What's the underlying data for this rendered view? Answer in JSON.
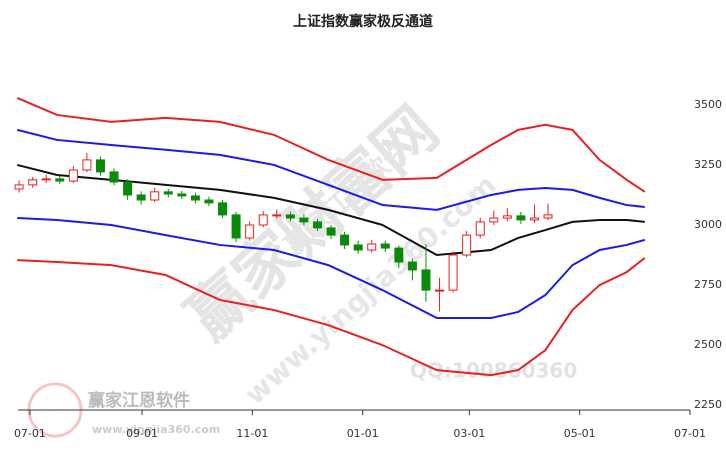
{
  "chart_data": {
    "type": "candlestick-bands",
    "title": "上证指数赢家极反通道",
    "watermarks": [
      "赢家财富网",
      "赢家江恩软件",
      "www.yingjia360.com",
      "QQ:100860360",
      "赢家江恩软件",
      "www.yingjia360.com"
    ],
    "xlim": [
      -6.6,
      365
    ],
    "ylim": [
      2230,
      3770
    ],
    "xticks": [
      {
        "value": 0,
        "label": "07-01"
      },
      {
        "value": 62,
        "label": "09-01"
      },
      {
        "value": 123,
        "label": "11-01"
      },
      {
        "value": 184,
        "label": "01-01"
      },
      {
        "value": 243,
        "label": "03-01"
      },
      {
        "value": 304,
        "label": "05-01"
      },
      {
        "value": 365,
        "label": "07-01"
      }
    ],
    "yticks": [
      2250,
      2500,
      2750,
      3000,
      3250,
      3500
    ],
    "x": [
      -7,
      15,
      45,
      75,
      105,
      135,
      165,
      195,
      225,
      255,
      270,
      285,
      300,
      315,
      330,
      340
    ],
    "series": [
      {
        "color": "#e8211e",
        "values": [
          3529,
          3458,
          3429,
          3446,
          3429,
          3375,
          3271,
          3188,
          3196,
          3333,
          3396,
          3417,
          3396,
          3271,
          3188,
          3138
        ]
      },
      {
        "color": "#1a1aeb",
        "values": [
          3396,
          3354,
          3333,
          3313,
          3292,
          3250,
          3167,
          3083,
          3063,
          3125,
          3146,
          3154,
          3146,
          3113,
          3083,
          3075
        ]
      },
      {
        "color": "#111111",
        "values": [
          3250,
          3208,
          3188,
          3167,
          3146,
          3113,
          3063,
          3000,
          2875,
          2896,
          2946,
          2979,
          3013,
          3021,
          3021,
          3013
        ]
      },
      {
        "color": "#1a1aeb",
        "values": [
          3029,
          3021,
          3000,
          2958,
          2917,
          2896,
          2833,
          2729,
          2613,
          2613,
          2638,
          2708,
          2833,
          2896,
          2917,
          2938
        ]
      },
      {
        "color": "#e8211e",
        "values": [
          2854,
          2846,
          2833,
          2792,
          2688,
          2646,
          2583,
          2500,
          2396,
          2375,
          2396,
          2479,
          2646,
          2750,
          2804,
          2863
        ]
      }
    ],
    "candles": {
      "up_color": "#e8211e",
      "down_color": "#0a8a0a",
      "x": [
        -6,
        1.5,
        9,
        16.5,
        24,
        31.5,
        39,
        46.5,
        54,
        61.5,
        69,
        76.5,
        84,
        91.5,
        99,
        106.5,
        114,
        121.5,
        129,
        136.5,
        144,
        151.5,
        159,
        166.5,
        174,
        181.5,
        189,
        196.5,
        204,
        211.5,
        219,
        226.5,
        234,
        241.5,
        249,
        256.5,
        264,
        271.5,
        279,
        286.5
      ],
      "open": [
        3150,
        3167,
        3188,
        3192,
        3183,
        3229,
        3271,
        3221,
        3179,
        3125,
        3104,
        3138,
        3129,
        3121,
        3104,
        3092,
        3042,
        2946,
        3000,
        3042,
        3042,
        3029,
        3013,
        2988,
        2958,
        2917,
        2896,
        2921,
        2904,
        2846,
        2813,
        2729,
        2729,
        2875,
        2958,
        3013,
        3029,
        3038,
        3021,
        3029
      ],
      "high": [
        3185,
        3200,
        3210,
        3205,
        3245,
        3300,
        3285,
        3235,
        3190,
        3140,
        3155,
        3150,
        3142,
        3135,
        3118,
        3105,
        3055,
        3015,
        3058,
        3065,
        3055,
        3045,
        3025,
        3000,
        2972,
        2935,
        2938,
        2935,
        2915,
        2860,
        2920,
        2780,
        2890,
        2975,
        3030,
        3060,
        3070,
        3055,
        3085,
        3090
      ],
      "low": [
        3135,
        3155,
        3175,
        3170,
        3175,
        3220,
        3205,
        3165,
        3105,
        3085,
        3095,
        3115,
        3108,
        3090,
        3078,
        3030,
        2930,
        2935,
        2990,
        3028,
        3015,
        3000,
        2975,
        2942,
        2900,
        2880,
        2885,
        2888,
        2820,
        2770,
        2680,
        2640,
        2720,
        2865,
        2945,
        3000,
        3015,
        3005,
        3008,
        3020
      ],
      "close": [
        3167,
        3188,
        3192,
        3183,
        3229,
        3271,
        3221,
        3179,
        3125,
        3104,
        3138,
        3129,
        3121,
        3104,
        3092,
        3042,
        2946,
        3000,
        3042,
        3042,
        3029,
        3013,
        2988,
        2958,
        2917,
        2896,
        2921,
        2904,
        2846,
        2813,
        2729,
        2729,
        2875,
        2958,
        3013,
        3029,
        3038,
        3021,
        3029,
        3042
      ]
    }
  }
}
